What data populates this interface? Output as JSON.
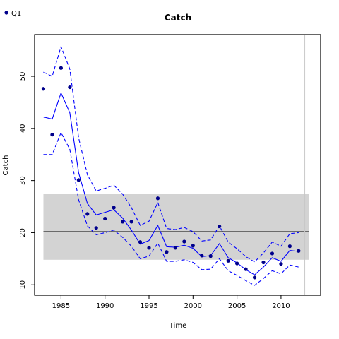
{
  "chart_data": {
    "type": "line",
    "title": "Catch",
    "xlabel": "Time",
    "ylabel": "Catch",
    "xlim": [
      1982,
      2014.5
    ],
    "ylim": [
      8,
      58
    ],
    "x_ticks": [
      1985,
      1990,
      1995,
      2000,
      2005,
      2010
    ],
    "y_ticks": [
      10,
      20,
      30,
      40,
      50
    ],
    "grid": false,
    "legend_position": "top-left",
    "legend": [
      {
        "label": "Q1",
        "color": "#00008B"
      }
    ],
    "reference_band": {
      "lower": 14.8,
      "upper": 27.5,
      "x_start": 1983,
      "x_end": 2013.2,
      "color": "#d3d3d3"
    },
    "reference_line": {
      "y": 20.2,
      "color": "#000000"
    },
    "vertical_marker": {
      "x": 2012.7,
      "color": "#c8c8c8"
    },
    "x": [
      1983,
      1984,
      1985,
      1986,
      1987,
      1988,
      1989,
      1990,
      1991,
      1992,
      1993,
      1994,
      1995,
      1996,
      1997,
      1998,
      1999,
      2000,
      2001,
      2002,
      2003,
      2004,
      2005,
      2006,
      2007,
      2008,
      2009,
      2010,
      2011,
      2012
    ],
    "series": [
      {
        "name": "Q1",
        "kind": "points",
        "color": "#00008B",
        "values": [
          47.6,
          38.8,
          51.6,
          47.9,
          30.1,
          23.6,
          20.9,
          22.7,
          24.8,
          22.1,
          22.1,
          18.2,
          17.1,
          26.6,
          16.3,
          17.1,
          18.3,
          17.5,
          15.6,
          15.5,
          21.2,
          14.6,
          14.1,
          13.0,
          11.4,
          14.3,
          16.0,
          14.0,
          17.4,
          16.5
        ]
      },
      {
        "kind": "fit",
        "color": "#0000ff",
        "values": [
          42.2,
          41.8,
          46.8,
          43.0,
          31.5,
          25.6,
          23.4,
          23.9,
          24.4,
          22.8,
          20.5,
          17.8,
          18.5,
          21.4,
          17.3,
          17.2,
          17.6,
          17.0,
          15.4,
          15.6,
          17.9,
          15.2,
          14.2,
          12.9,
          11.9,
          13.4,
          15.2,
          14.5,
          16.6,
          16.4
        ]
      },
      {
        "kind": "upper_ci",
        "color": "#0000ff",
        "values": [
          50.8,
          50.0,
          55.7,
          51.4,
          38.2,
          31.1,
          28.0,
          28.5,
          29.1,
          27.4,
          24.8,
          21.4,
          22.2,
          25.8,
          20.8,
          20.6,
          21.0,
          20.2,
          18.4,
          18.6,
          21.3,
          18.2,
          16.9,
          15.4,
          14.4,
          16.1,
          18.2,
          17.4,
          19.8,
          20.0
        ]
      },
      {
        "kind": "lower_ci",
        "color": "#0000ff",
        "values": [
          35.0,
          35.0,
          39.2,
          36.0,
          26.3,
          21.3,
          19.6,
          20.0,
          20.5,
          19.1,
          17.4,
          15.0,
          15.5,
          18.0,
          14.5,
          14.5,
          14.8,
          14.3,
          12.9,
          13.0,
          15.0,
          12.7,
          11.8,
          10.8,
          9.9,
          11.2,
          12.7,
          12.1,
          13.8,
          13.4
        ]
      }
    ]
  }
}
